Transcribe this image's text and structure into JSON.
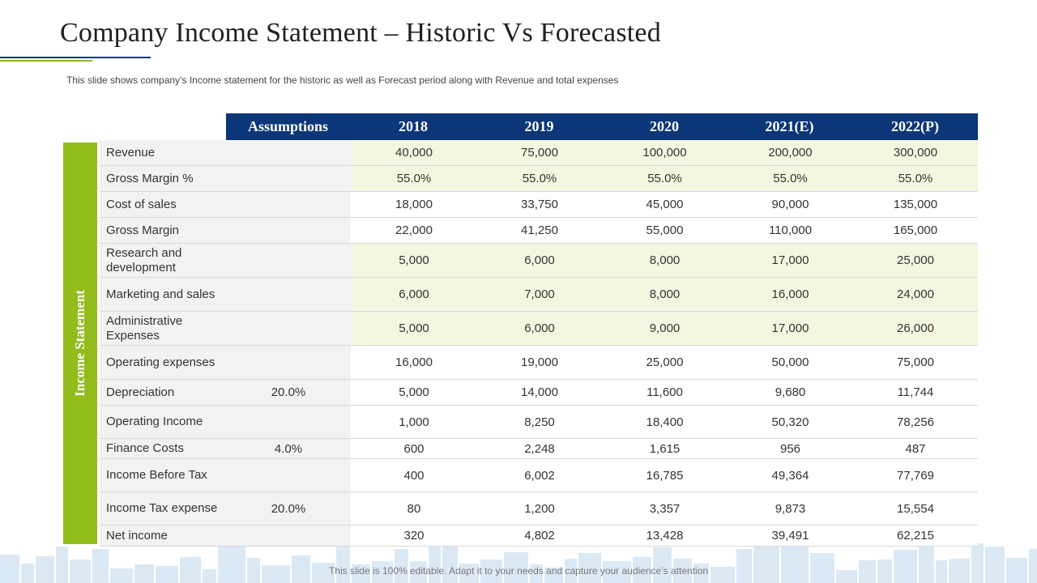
{
  "slide": {
    "title": "Company Income Statement – Historic Vs Forecasted",
    "subtitle": "This slide shows company’s Income statement for the historic as well as Forecast period along with Revenue  and total expenses",
    "footer": "This slide is 100% editable. Adapt it to your needs and capture your audience’s attention",
    "side_label": "Income Statement"
  },
  "table": {
    "headers": [
      "Assumptions",
      "2018",
      "2019",
      "2020",
      "2021(E)",
      "2022(P)"
    ],
    "rows": [
      {
        "label": "Revenue",
        "assumption": "",
        "values": [
          "40,000",
          "75,000",
          "100,000",
          "200,000",
          "300,000"
        ],
        "highlight": true
      },
      {
        "label": "Gross Margin %",
        "assumption": "",
        "values": [
          "55.0%",
          "55.0%",
          "55.0%",
          "55.0%",
          "55.0%"
        ],
        "highlight": true
      },
      {
        "label": "Cost of sales",
        "assumption": "",
        "values": [
          "18,000",
          "33,750",
          "45,000",
          "90,000",
          "135,000"
        ],
        "highlight": false
      },
      {
        "label": "Gross Margin",
        "assumption": "",
        "values": [
          "22,000",
          "41,250",
          "55,000",
          "110,000",
          "165,000"
        ],
        "highlight": false
      },
      {
        "label": "Research and development",
        "assumption": "",
        "values": [
          "5,000",
          "6,000",
          "8,000",
          "17,000",
          "25,000"
        ],
        "highlight": true
      },
      {
        "label": "Marketing  and sales",
        "assumption": "",
        "values": [
          "6,000",
          "7,000",
          "8,000",
          "16,000",
          "24,000"
        ],
        "highlight": true
      },
      {
        "label": "Administrative Expenses",
        "assumption": "",
        "values": [
          "5,000",
          "6,000",
          "9,000",
          "17,000",
          "26,000"
        ],
        "highlight": true
      },
      {
        "label": "Operating expenses",
        "assumption": "",
        "values": [
          "16,000",
          "19,000",
          "25,000",
          "50,000",
          "75,000"
        ],
        "highlight": false
      },
      {
        "label": "Depreciation",
        "assumption": "20.0%",
        "values": [
          "5,000",
          "14,000",
          "11,600",
          "9,680",
          "11,744"
        ],
        "highlight": false
      },
      {
        "label": "Operating Income",
        "assumption": "",
        "values": [
          "1,000",
          "8,250",
          "18,400",
          "50,320",
          "78,256"
        ],
        "highlight": false
      },
      {
        "label": "Finance Costs",
        "assumption": "4.0%",
        "values": [
          "600",
          "2,248",
          "1,615",
          "956",
          "487"
        ],
        "highlight": false
      },
      {
        "label": "Income Before Tax",
        "assumption": "",
        "values": [
          "400",
          "6,002",
          "16,785",
          "49,364",
          "77,769"
        ],
        "highlight": false
      },
      {
        "label": "Income Tax expense",
        "assumption": "20.0%",
        "values": [
          "80",
          "1,200",
          "3,357",
          "9,873",
          "15,554"
        ],
        "highlight": false
      },
      {
        "label": "Net income",
        "assumption": "",
        "values": [
          "320",
          "4,802",
          "13,428",
          "39,491",
          "62,215"
        ],
        "highlight": false
      }
    ]
  },
  "colors": {
    "header_bg": "#0b3677",
    "side_bar": "#92bc1b",
    "highlight_row": "#f2f8e0",
    "label_col": "#f2f2f2"
  }
}
